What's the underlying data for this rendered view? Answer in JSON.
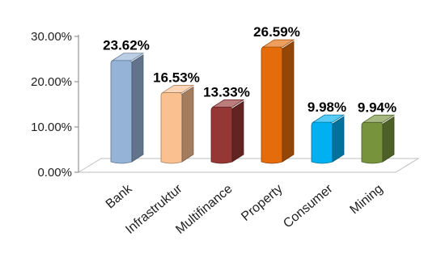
{
  "chart_data": {
    "type": "bar",
    "style": "3d-column",
    "categories": [
      "Bank",
      "Infrastruktur",
      "Multifinance",
      "Property",
      "Consumer",
      "Mining"
    ],
    "values": [
      23.62,
      16.53,
      13.33,
      26.59,
      9.98,
      9.94
    ],
    "data_labels": [
      "23.62%",
      "16.53%",
      "13.33%",
      "26.59%",
      "9.98%",
      "9.94%"
    ],
    "colors": [
      "#95b3d7",
      "#fac090",
      "#953735",
      "#e46c0a",
      "#00b0f0",
      "#77933c"
    ],
    "y_ticks": [
      {
        "value": 0,
        "label": "0.00%"
      },
      {
        "value": 10,
        "label": "10.00%"
      },
      {
        "value": 20,
        "label": "20.00%"
      },
      {
        "value": 30,
        "label": "30.00%"
      }
    ],
    "ylim": [
      0,
      30
    ],
    "grid": false,
    "legend": "none",
    "title": "",
    "xlabel": "",
    "ylabel": ""
  }
}
